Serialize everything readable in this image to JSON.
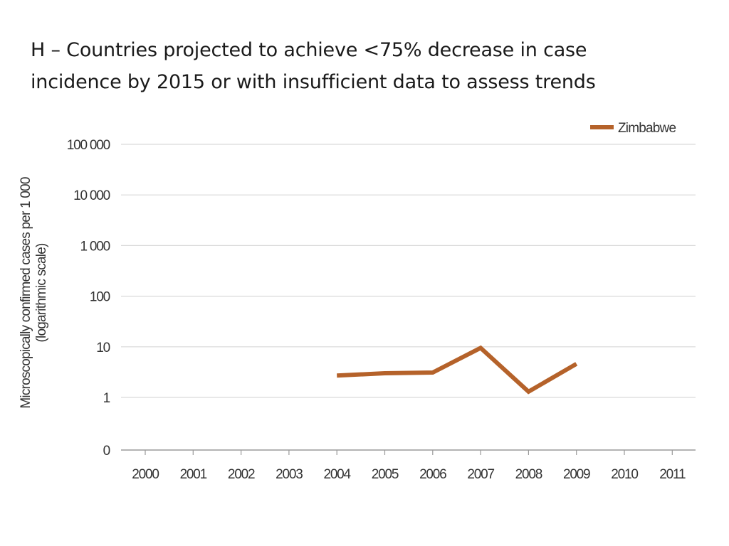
{
  "chart_data": {
    "type": "line",
    "title_lines": [
      "H – Countries projected to achieve <75% decrease in case",
      "incidence by 2015 or with insufficient data to assess trends"
    ],
    "ylabel_lines": [
      "Microscopically confirmed cases per 1 000",
      "(logarithmic scale)"
    ],
    "xlabel": "",
    "y_scale": "log",
    "y_ticks": [
      {
        "value": 0,
        "label": "0"
      },
      {
        "value": 1,
        "label": "1"
      },
      {
        "value": 10,
        "label": "10"
      },
      {
        "value": 100,
        "label": "100"
      },
      {
        "value": 1000,
        "label": "1 000"
      },
      {
        "value": 10000,
        "label": "10 000"
      },
      {
        "value": 100000,
        "label": "100 000"
      }
    ],
    "x": [
      "2000",
      "2001",
      "2002",
      "2003",
      "2004",
      "2005",
      "2006",
      "2007",
      "2008",
      "2009",
      "2010",
      "2011"
    ],
    "grid": true,
    "legend_position": "top-right",
    "series": [
      {
        "name": "Zimbabwe",
        "color": "#b5622a",
        "points": [
          {
            "x": "2004",
            "y": 2.7
          },
          {
            "x": "2005",
            "y": 3.0
          },
          {
            "x": "2006",
            "y": 3.1
          },
          {
            "x": "2007",
            "y": 9.5
          },
          {
            "x": "2008",
            "y": 1.3
          },
          {
            "x": "2009",
            "y": 4.6
          }
        ]
      }
    ]
  }
}
